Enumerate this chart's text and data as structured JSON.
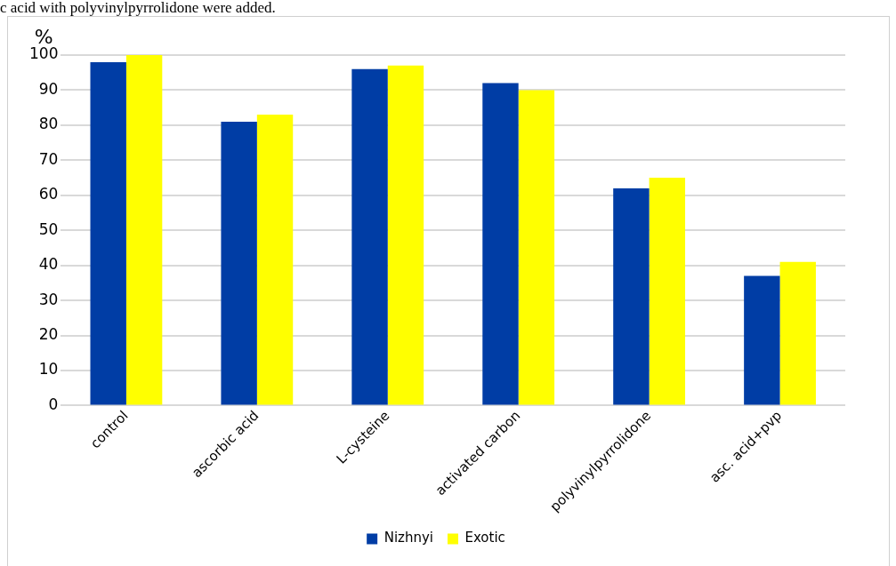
{
  "chart_data": {
    "type": "bar",
    "ylabel": "%",
    "annotations": [
      "c acid with polyvinylpyrrolidone were added."
    ],
    "categories": [
      "control",
      "ascorbic acid",
      "L-cysteine",
      "activated carbon",
      "polyvinylpyrrolidone",
      "asc. acid+pvp"
    ],
    "series": [
      {
        "name": "Nizhnyi",
        "color": "#003da5",
        "values": [
          98,
          81,
          96,
          92,
          62,
          37
        ]
      },
      {
        "name": "Exotic",
        "color": "#ffff00",
        "values": [
          100,
          83,
          97,
          90,
          65,
          41
        ]
      }
    ],
    "ylim": [
      0,
      100
    ],
    "yticks": [
      0,
      10,
      20,
      30,
      40,
      50,
      60,
      70,
      80,
      90,
      100
    ],
    "grid": "y",
    "legend": "bottom"
  }
}
